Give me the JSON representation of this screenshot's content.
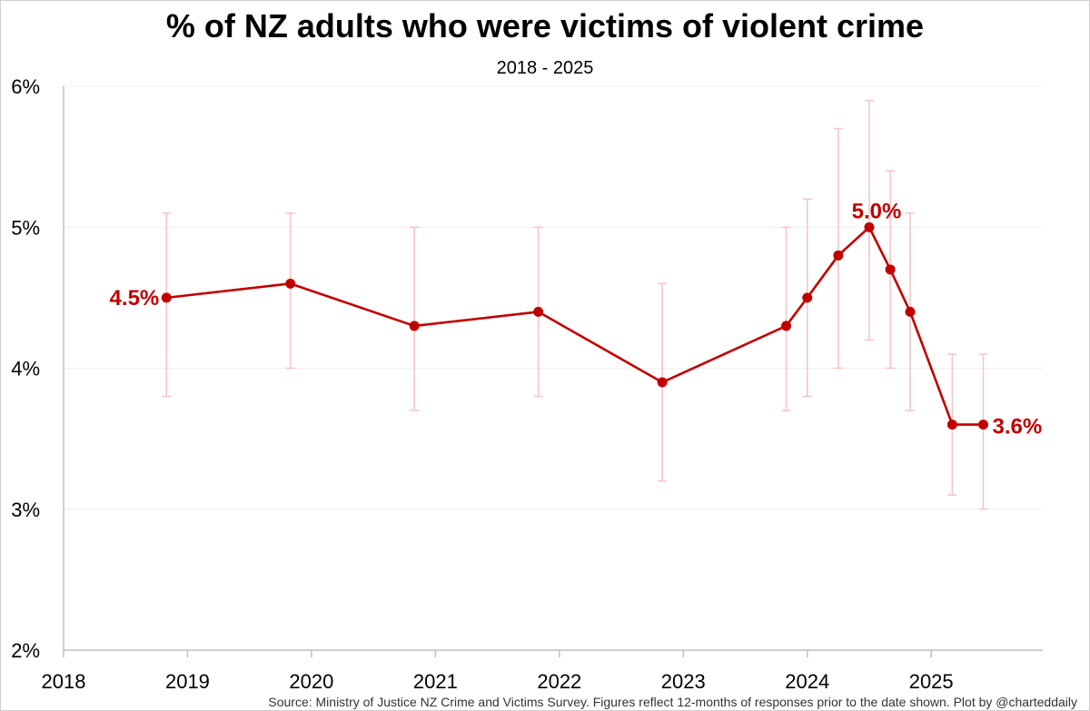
{
  "title": "% of NZ adults who were victims of violent crime",
  "subtitle": "2018 - 2025",
  "source": "Source: Ministry of Justice NZ Crime and Victims Survey. Figures reflect 12-months of responses prior to the date shown. Plot by @charteddaily",
  "colors": {
    "line": "#c00000",
    "error_bar": "#f4c7c7",
    "axis": "#bfbfbf",
    "grid": "#f0f0f0"
  },
  "chart_data": {
    "type": "line",
    "title": "% of NZ adults who were victims of violent crime",
    "subtitle": "2018 - 2025",
    "xlim": [
      2018,
      2025.9
    ],
    "ylim": [
      2,
      6
    ],
    "x_ticks": [
      2018,
      2019,
      2020,
      2021,
      2022,
      2023,
      2024,
      2025
    ],
    "x_tick_labels": [
      "2018",
      "2019",
      "2020",
      "2021",
      "2022",
      "2023",
      "2024",
      "2025"
    ],
    "y_ticks": [
      2,
      3,
      4,
      5,
      6
    ],
    "y_tick_labels": [
      "2%",
      "3%",
      "4%",
      "5%",
      "6%"
    ],
    "grid": "horizontal",
    "series": [
      {
        "x": [
          2018.83,
          2019.83,
          2020.83,
          2021.83,
          2022.83,
          2023.83,
          2024.0,
          2024.25,
          2024.5,
          2024.67,
          2024.83,
          2025.17,
          2025.42
        ],
        "values": [
          4.5,
          4.6,
          4.3,
          4.4,
          3.9,
          4.3,
          4.5,
          4.8,
          5.0,
          4.7,
          4.4,
          3.6,
          3.6
        ],
        "lower": [
          3.8,
          4.0,
          3.7,
          3.8,
          3.2,
          3.7,
          3.8,
          4.0,
          4.2,
          4.0,
          3.7,
          3.1,
          3.0
        ],
        "upper": [
          5.1,
          5.1,
          5.0,
          5.0,
          4.6,
          5.0,
          5.2,
          5.7,
          5.9,
          5.4,
          5.1,
          4.1,
          4.1
        ]
      }
    ],
    "annotations": [
      {
        "index": 0,
        "text": "4.5%",
        "position": "left"
      },
      {
        "index": 8,
        "text": "5.0%",
        "position": "above"
      },
      {
        "index": 12,
        "text": "3.6%",
        "position": "right"
      }
    ]
  }
}
